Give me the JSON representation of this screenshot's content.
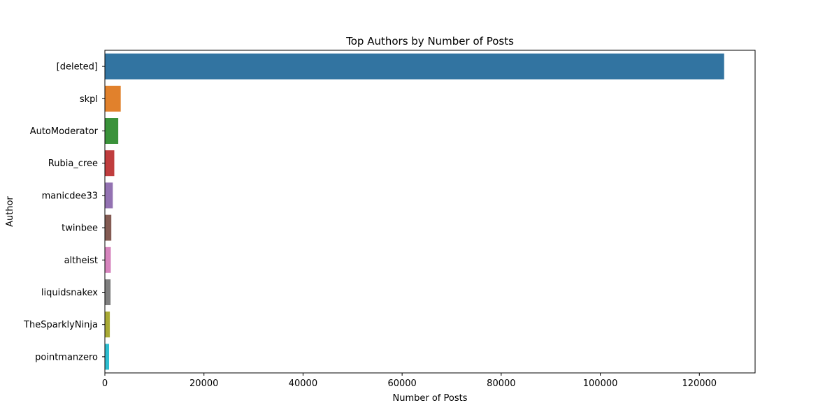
{
  "chart_data": {
    "type": "bar",
    "orientation": "horizontal",
    "title": "Top Authors by Number of Posts",
    "xlabel": "Number of Posts",
    "ylabel": "Author",
    "categories": [
      "[deleted]",
      "skpl",
      "AutoModerator",
      "Rubia_cree",
      "manicdee33",
      "twinbee",
      "altheist",
      "liquidsnakex",
      "TheSparklyNinja",
      "pointmanzero"
    ],
    "values": [
      125000,
      3200,
      2700,
      1900,
      1600,
      1300,
      1200,
      1150,
      1000,
      850
    ],
    "colors": [
      "#3274a1",
      "#e1812c",
      "#3a923a",
      "#c03d3e",
      "#9372b2",
      "#845b53",
      "#d684bd",
      "#7f7f7f",
      "#a9aa35",
      "#2ebdcf"
    ],
    "xlim": [
      0,
      131250
    ],
    "xticks": [
      0,
      20000,
      40000,
      60000,
      80000,
      100000,
      120000
    ],
    "grid": false,
    "legend": "none"
  }
}
